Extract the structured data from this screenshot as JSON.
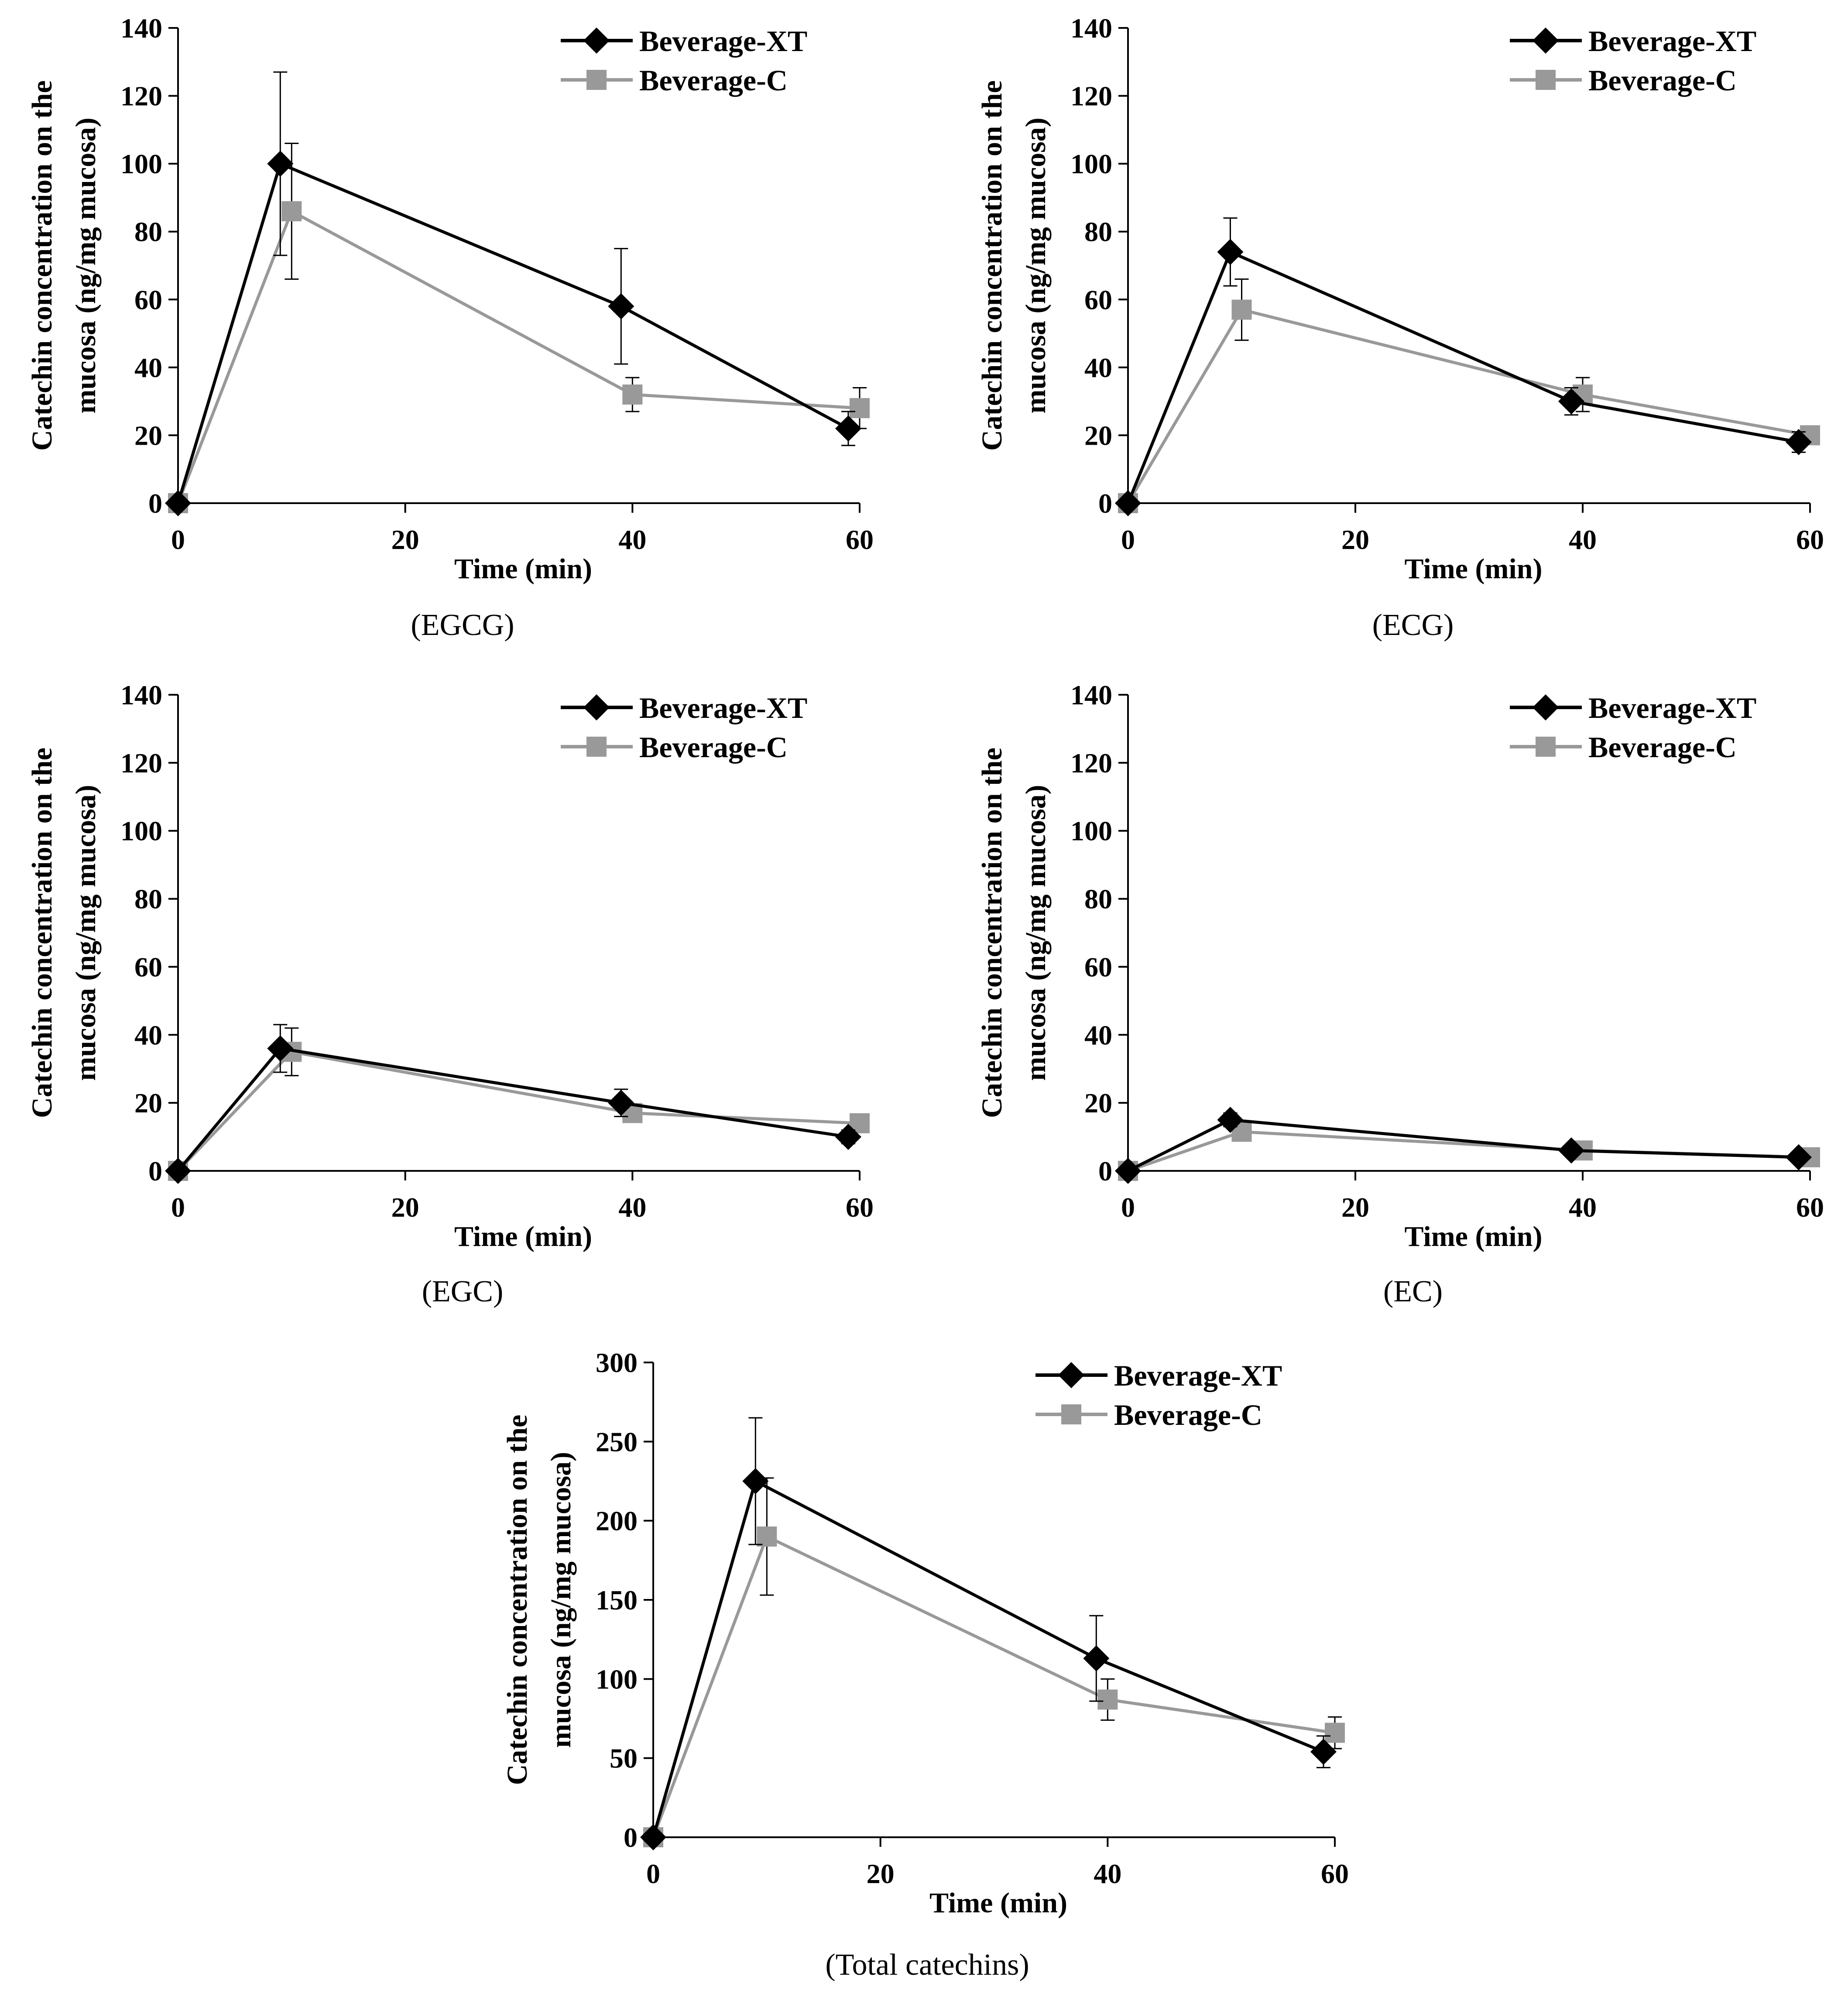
{
  "chart_data": [
    {
      "type": "line",
      "caption": "(EGCG)",
      "xlabel": "Time (min)",
      "ylabel": [
        "Catechin concentration on the",
        "mucosa (ng/mg mucosa)"
      ],
      "xlim": [
        0,
        60
      ],
      "ylim": [
        0,
        140
      ],
      "xticks": [
        0,
        20,
        40,
        60
      ],
      "xtick_labels": [
        "0",
        "20",
        "40",
        "60"
      ],
      "yticks": [
        0,
        20,
        40,
        60,
        80,
        100,
        120,
        140
      ],
      "ytick_labels": [
        "0",
        "20",
        "40",
        "60",
        "80",
        "100",
        "120",
        "140"
      ],
      "legend_position": "top-right",
      "series": [
        {
          "name": "Beverage-XT",
          "marker": "diamond",
          "color": "#000000",
          "x": [
            0,
            9,
            39,
            59
          ],
          "y": [
            0,
            100,
            58,
            22
          ],
          "err": [
            0,
            27,
            17,
            5
          ]
        },
        {
          "name": "Beverage-C",
          "marker": "square",
          "color": "#999999",
          "x": [
            0,
            10,
            40,
            60
          ],
          "y": [
            0,
            86,
            32,
            28
          ],
          "err": [
            0,
            20,
            5,
            6
          ]
        }
      ]
    },
    {
      "type": "line",
      "caption": "(ECG)",
      "xlabel": "Time (min)",
      "ylabel": [
        "Catechin concentration on the",
        "mucosa (ng/mg mucosa)"
      ],
      "xlim": [
        0,
        60
      ],
      "ylim": [
        0,
        140
      ],
      "xticks": [
        0,
        20,
        40,
        60
      ],
      "xtick_labels": [
        "0",
        "20",
        "40",
        "60"
      ],
      "yticks": [
        0,
        20,
        40,
        60,
        80,
        100,
        120,
        140
      ],
      "ytick_labels": [
        "0",
        "20",
        "40",
        "60",
        "80",
        "100",
        "120",
        "140"
      ],
      "legend_position": "top-right",
      "series": [
        {
          "name": "Beverage-XT",
          "marker": "diamond",
          "color": "#000000",
          "x": [
            0,
            9,
            39,
            59
          ],
          "y": [
            0,
            74,
            30,
            18
          ],
          "err": [
            0,
            10,
            4,
            3
          ]
        },
        {
          "name": "Beverage-C",
          "marker": "square",
          "color": "#999999",
          "x": [
            0,
            10,
            40,
            60
          ],
          "y": [
            0,
            57,
            32,
            20
          ],
          "err": [
            0,
            9,
            5,
            2
          ]
        }
      ]
    },
    {
      "type": "line",
      "caption": "(EGC)",
      "xlabel": "Time (min)",
      "ylabel": [
        "Catechin concentration on the",
        "mucosa (ng/mg mucosa)"
      ],
      "xlim": [
        0,
        60
      ],
      "ylim": [
        0,
        140
      ],
      "xticks": [
        0,
        20,
        40,
        60
      ],
      "xtick_labels": [
        "0",
        "20",
        "40",
        "60"
      ],
      "yticks": [
        0,
        20,
        40,
        60,
        80,
        100,
        120,
        140
      ],
      "ytick_labels": [
        "0",
        "20",
        "40",
        "60",
        "80",
        "100",
        "120",
        "140"
      ],
      "legend_position": "top-right",
      "series": [
        {
          "name": "Beverage-XT",
          "marker": "diamond",
          "color": "#000000",
          "x": [
            0,
            9,
            39,
            59
          ],
          "y": [
            0,
            36,
            20,
            10
          ],
          "err": [
            0,
            7,
            4,
            2
          ]
        },
        {
          "name": "Beverage-C",
          "marker": "square",
          "color": "#999999",
          "x": [
            0,
            10,
            40,
            60
          ],
          "y": [
            0,
            35,
            17,
            14
          ],
          "err": [
            0,
            7,
            2,
            2
          ]
        }
      ]
    },
    {
      "type": "line",
      "caption": "(EC)",
      "xlabel": "Time (min)",
      "ylabel": [
        "Catechin concentration on the",
        "mucosa (ng/mg mucosa)"
      ],
      "xlim": [
        0,
        60
      ],
      "ylim": [
        0,
        140
      ],
      "xticks": [
        0,
        20,
        40,
        60
      ],
      "xtick_labels": [
        "0",
        "20",
        "40",
        "60"
      ],
      "yticks": [
        0,
        20,
        40,
        60,
        80,
        100,
        120,
        140
      ],
      "ytick_labels": [
        "0",
        "20",
        "40",
        "60",
        "80",
        "100",
        "120",
        "140"
      ],
      "legend_position": "top-right",
      "series": [
        {
          "name": "Beverage-XT",
          "marker": "diamond",
          "color": "#000000",
          "x": [
            0,
            9,
            39,
            59
          ],
          "y": [
            0,
            15,
            6,
            4
          ],
          "err": [
            0,
            2,
            1,
            1
          ]
        },
        {
          "name": "Beverage-C",
          "marker": "square",
          "color": "#999999",
          "x": [
            0,
            10,
            40,
            60
          ],
          "y": [
            0,
            11.5,
            6,
            4
          ],
          "err": [
            0,
            2,
            1,
            1
          ]
        }
      ]
    },
    {
      "type": "line",
      "caption": "(Total catechins)",
      "xlabel": "Time (min)",
      "ylabel": [
        "Catechin concentration on the",
        "mucosa (ng/mg mucosa)"
      ],
      "xlim": [
        0,
        60
      ],
      "ylim": [
        0,
        300
      ],
      "xticks": [
        0,
        20,
        40,
        60
      ],
      "xtick_labels": [
        "0",
        "20",
        "40",
        "60"
      ],
      "yticks": [
        0,
        50,
        100,
        150,
        200,
        250,
        300
      ],
      "ytick_labels": [
        "0",
        "50",
        "100",
        "150",
        "200",
        "250",
        "300"
      ],
      "legend_position": "top-right",
      "series": [
        {
          "name": "Beverage-XT",
          "marker": "diamond",
          "color": "#000000",
          "x": [
            0,
            9,
            39,
            59
          ],
          "y": [
            0,
            225,
            113,
            54
          ],
          "err": [
            0,
            40,
            27,
            10
          ]
        },
        {
          "name": "Beverage-C",
          "marker": "square",
          "color": "#999999",
          "x": [
            0,
            10,
            40,
            60
          ],
          "y": [
            0,
            190,
            87,
            66
          ],
          "err": [
            0,
            37,
            13,
            10
          ]
        }
      ]
    }
  ]
}
